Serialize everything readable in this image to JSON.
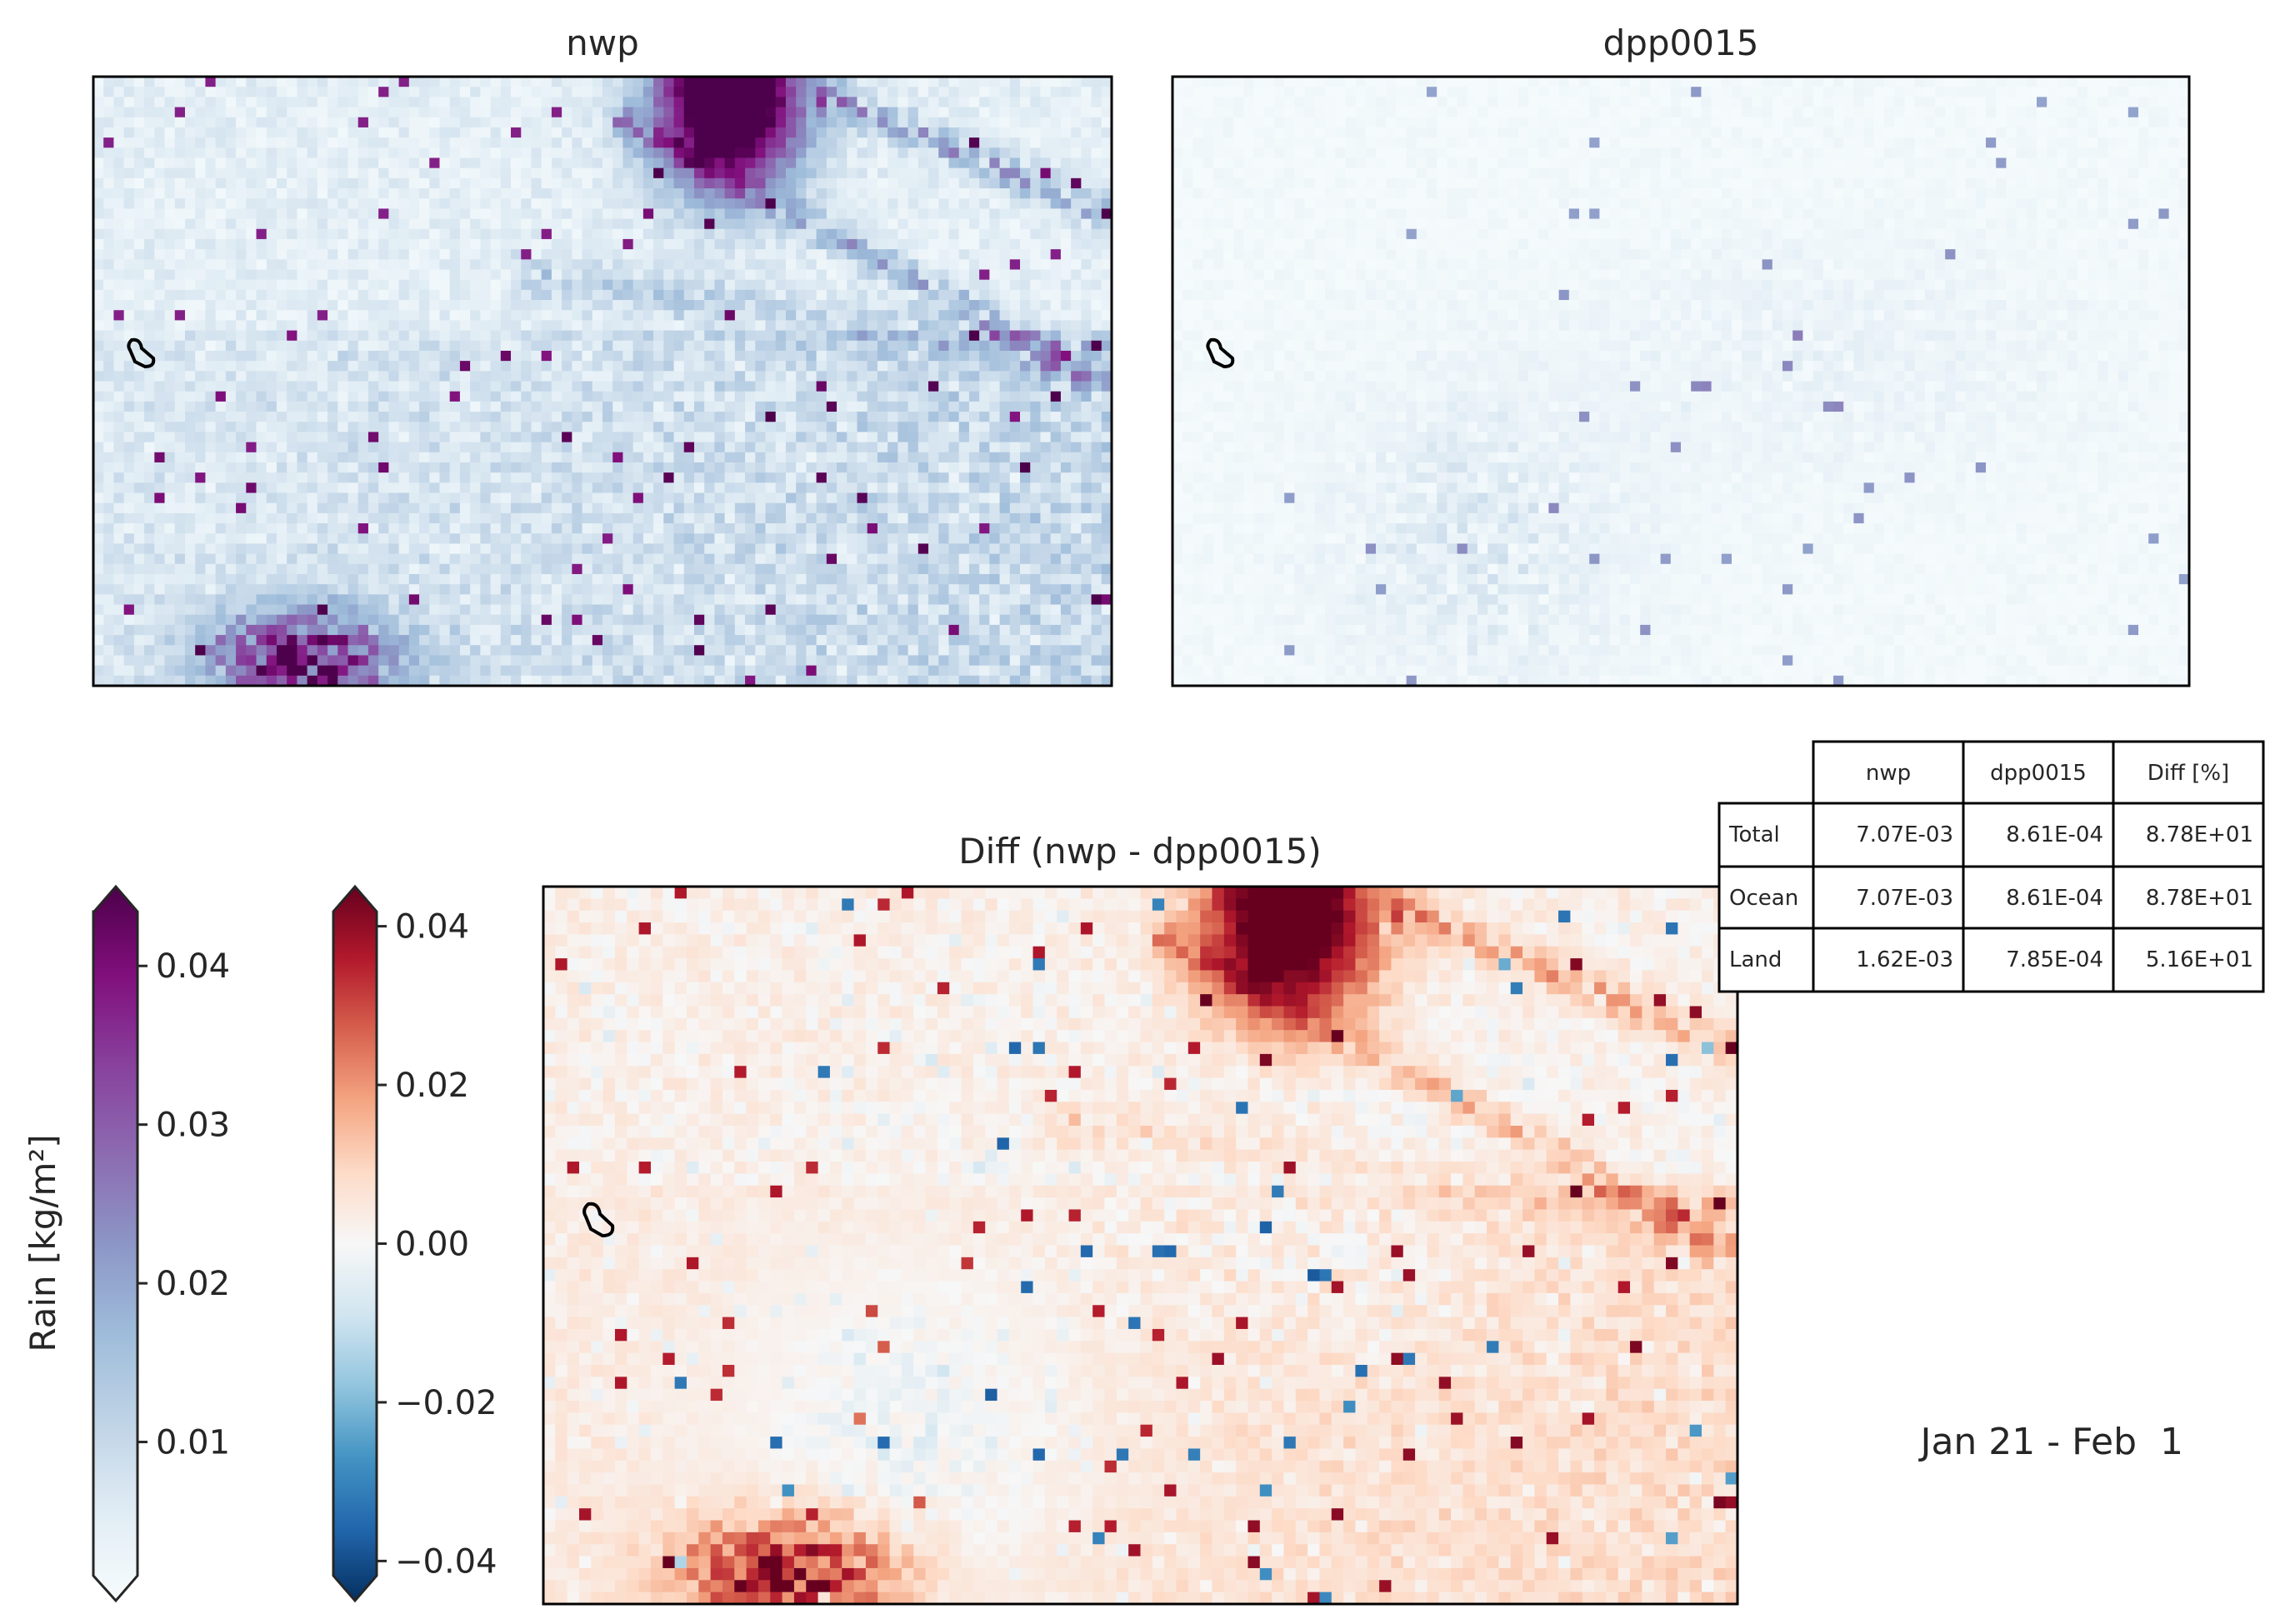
{
  "chart_data": [
    {
      "type": "heatmap",
      "title": "nwp",
      "colormap": "BuPu",
      "vlim": [
        0,
        0.045
      ],
      "description_of_field": "gridded rain totals; low values over most of the domain, strong maximum at top-center, lighter streaks radiating toward bottom-right, a second maximum at bottom-left",
      "island_outline": true
    },
    {
      "type": "heatmap",
      "title": "dpp0015",
      "colormap": "BuPu",
      "vlim": [
        0,
        0.045
      ],
      "description_of_field": "mostly near-zero rain, faint scattered patches in center and lower-left",
      "island_outline": true
    },
    {
      "type": "heatmap",
      "title": "Diff (nwp - dpp0015)",
      "colormap": "RdBu_r",
      "vlim": [
        -0.045,
        0.045
      ],
      "description_of_field": "mostly positive (nwp wetter), strong positive at top-center and bottom-left, small negative patches lower-left",
      "island_outline": true
    }
  ],
  "colorbars": {
    "rain": {
      "label": "Rain [kg/m²]",
      "ticks": [
        0.01,
        0.02,
        0.03,
        0.04
      ],
      "tick_labels": [
        "0.01",
        "0.02",
        "0.03",
        "0.04"
      ],
      "range": [
        0,
        0.045
      ],
      "extend": "both",
      "colors": [
        "#f7fcfd",
        "#e0ecf4",
        "#bfd3e6",
        "#9ebcda",
        "#8c96c6",
        "#8c6bb1",
        "#88419d",
        "#810f7c",
        "#4d004b"
      ]
    },
    "diff": {
      "ticks": [
        0.04,
        0.02,
        0.0,
        -0.02,
        -0.04
      ],
      "tick_labels": [
        "0.04",
        "0.02",
        "0.00",
        "−0.02",
        "−0.04"
      ],
      "range": [
        -0.045,
        0.045
      ],
      "extend": "both",
      "colors": [
        "#053061",
        "#2166ac",
        "#4393c3",
        "#92c5de",
        "#d1e5f0",
        "#f7f7f7",
        "#fddbc7",
        "#f4a582",
        "#d6604d",
        "#b2182b",
        "#67001f"
      ]
    }
  },
  "stats_table": {
    "columns": [
      "nwp",
      "dpp0015",
      "Diff [%]"
    ],
    "rows": [
      {
        "label": "Total",
        "values": [
          "7.07E-03",
          "8.61E-04",
          "8.78E+01"
        ]
      },
      {
        "label": "Ocean",
        "values": [
          "7.07E-03",
          "8.61E-04",
          "8.78E+01"
        ]
      },
      {
        "label": "Land",
        "values": [
          "1.62E-03",
          "7.85E-04",
          "5.16E+01"
        ]
      }
    ]
  },
  "date_range": "Jan 21 - Feb  1"
}
